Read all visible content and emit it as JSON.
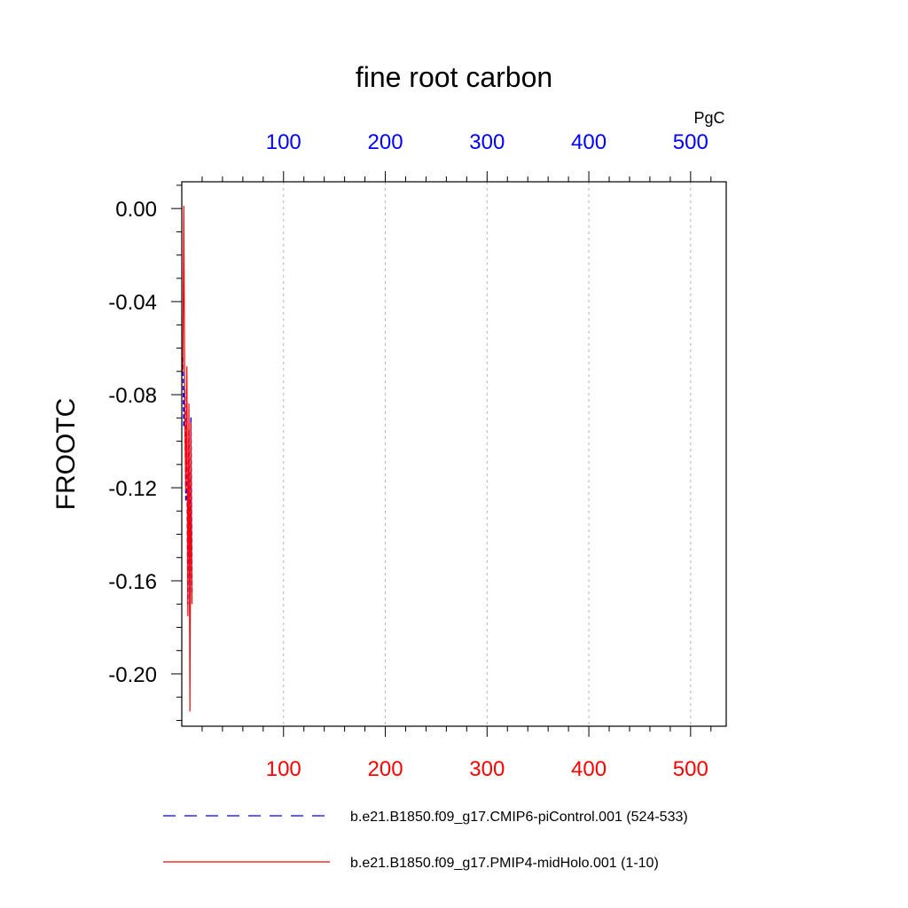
{
  "chart_data": {
    "type": "line",
    "title": "fine root carbon",
    "ylabel": "FROOTC",
    "top_axis_unit": "PgC",
    "xlim": [
      0,
      535
    ],
    "ylim": [
      -0.2225,
      0.0115
    ],
    "grid": "vertical dashed at top-axis ticks",
    "bottom_axis": {
      "ticks": [
        100,
        200,
        300,
        400,
        500
      ],
      "tick_labels": [
        "100",
        "200",
        "300",
        "400",
        "500"
      ],
      "color": "#ff0000"
    },
    "top_axis": {
      "ticks": [
        100,
        200,
        300,
        400,
        500
      ],
      "tick_labels": [
        "100",
        "200",
        "300",
        "400",
        "500"
      ],
      "color": "#0000ff"
    },
    "left_axis": {
      "ticks": [
        0.0,
        -0.04,
        -0.08,
        -0.12,
        -0.16,
        -0.2
      ],
      "tick_labels": [
        "0.00",
        "-0.04",
        "-0.08",
        "-0.12",
        "-0.16",
        "-0.20"
      ]
    },
    "series": [
      {
        "name": "b.e21.B1850.f09_g17.CMIP6-piControl.001 (524-533)",
        "color": "#0000ff",
        "dash": "dashed",
        "x": [
          1,
          2,
          3,
          4,
          5,
          6,
          7,
          8,
          9,
          10
        ],
        "y": [
          -0.064,
          -0.094,
          -0.078,
          -0.126,
          -0.1,
          -0.17,
          -0.095,
          -0.175,
          -0.09,
          -0.165
        ]
      },
      {
        "name": "b.e21.B1850.f09_g17.PMIP4-midHolo.001 (1-10)",
        "color": "#ff0000",
        "dash": "solid",
        "x": [
          1,
          2,
          3,
          4,
          5,
          6,
          7,
          8,
          9,
          10
        ],
        "y": [
          -0.07,
          0.001,
          -0.09,
          -0.121,
          -0.068,
          -0.175,
          -0.084,
          -0.216,
          -0.092,
          -0.17
        ]
      }
    ],
    "legend_position": "bottom"
  }
}
